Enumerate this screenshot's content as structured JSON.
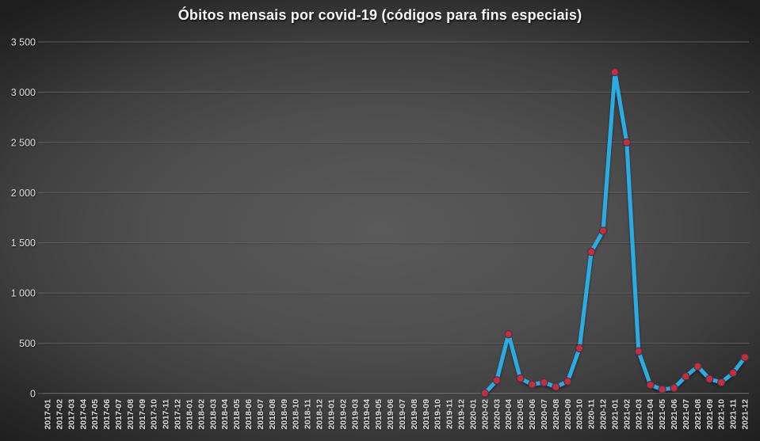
{
  "chart_data": {
    "type": "line",
    "title": "Óbitos mensais por covid-19 (códigos para fins especiais)",
    "xlabel": "",
    "ylabel": "",
    "ylim": [
      0,
      3500
    ],
    "y_tick_step": 500,
    "y_tick_labels": [
      "0",
      "500",
      "1 000",
      "1 500",
      "2 000",
      "2 500",
      "3 000",
      "3 500"
    ],
    "grid": true,
    "legend": "none",
    "categories": [
      "2017-01",
      "2017-02",
      "2017-03",
      "2017-04",
      "2017-05",
      "2017-06",
      "2017-07",
      "2017-08",
      "2017-09",
      "2017-10",
      "2017-11",
      "2017-12",
      "2018-01",
      "2018-02",
      "2018-03",
      "2018-04",
      "2018-05",
      "2018-06",
      "2018-07",
      "2018-08",
      "2018-09",
      "2018-10",
      "2018-11",
      "2018-12",
      "2019-01",
      "2019-02",
      "2019-03",
      "2019-04",
      "2019-05",
      "2019-06",
      "2019-07",
      "2019-08",
      "2019-09",
      "2019-10",
      "2019-11",
      "2019-12",
      "2020-01",
      "2020-02",
      "2020-03",
      "2020-04",
      "2020-05",
      "2020-06",
      "2020-07",
      "2020-08",
      "2020-09",
      "2020-10",
      "2020-11",
      "2020-12",
      "2021-01",
      "2021-02",
      "2021-03",
      "2021-04",
      "2021-05",
      "2021-06",
      "2021-07",
      "2021-08",
      "2021-09",
      "2021-10",
      "2021-11",
      "2021-12"
    ],
    "series": [
      {
        "name": "Óbitos mensais por covid-19 (códigos para fins especiais)",
        "values": [
          null,
          null,
          null,
          null,
          null,
          null,
          null,
          null,
          null,
          null,
          null,
          null,
          null,
          null,
          null,
          null,
          null,
          null,
          null,
          null,
          null,
          null,
          null,
          null,
          null,
          null,
          null,
          null,
          null,
          null,
          null,
          null,
          null,
          null,
          null,
          null,
          null,
          2,
          130,
          590,
          150,
          90,
          110,
          65,
          120,
          450,
          1410,
          1620,
          3200,
          2500,
          420,
          85,
          40,
          55,
          170,
          270,
          145,
          110,
          205,
          360
        ]
      }
    ],
    "colors": {
      "line": "#29abe2",
      "marker": "#c62f39",
      "marker_edge": "#46324e",
      "grid": "#616161",
      "axis": "#7c7c7c",
      "tick_text": "#d9d9d9",
      "title_text": "#f5f5f5"
    }
  }
}
